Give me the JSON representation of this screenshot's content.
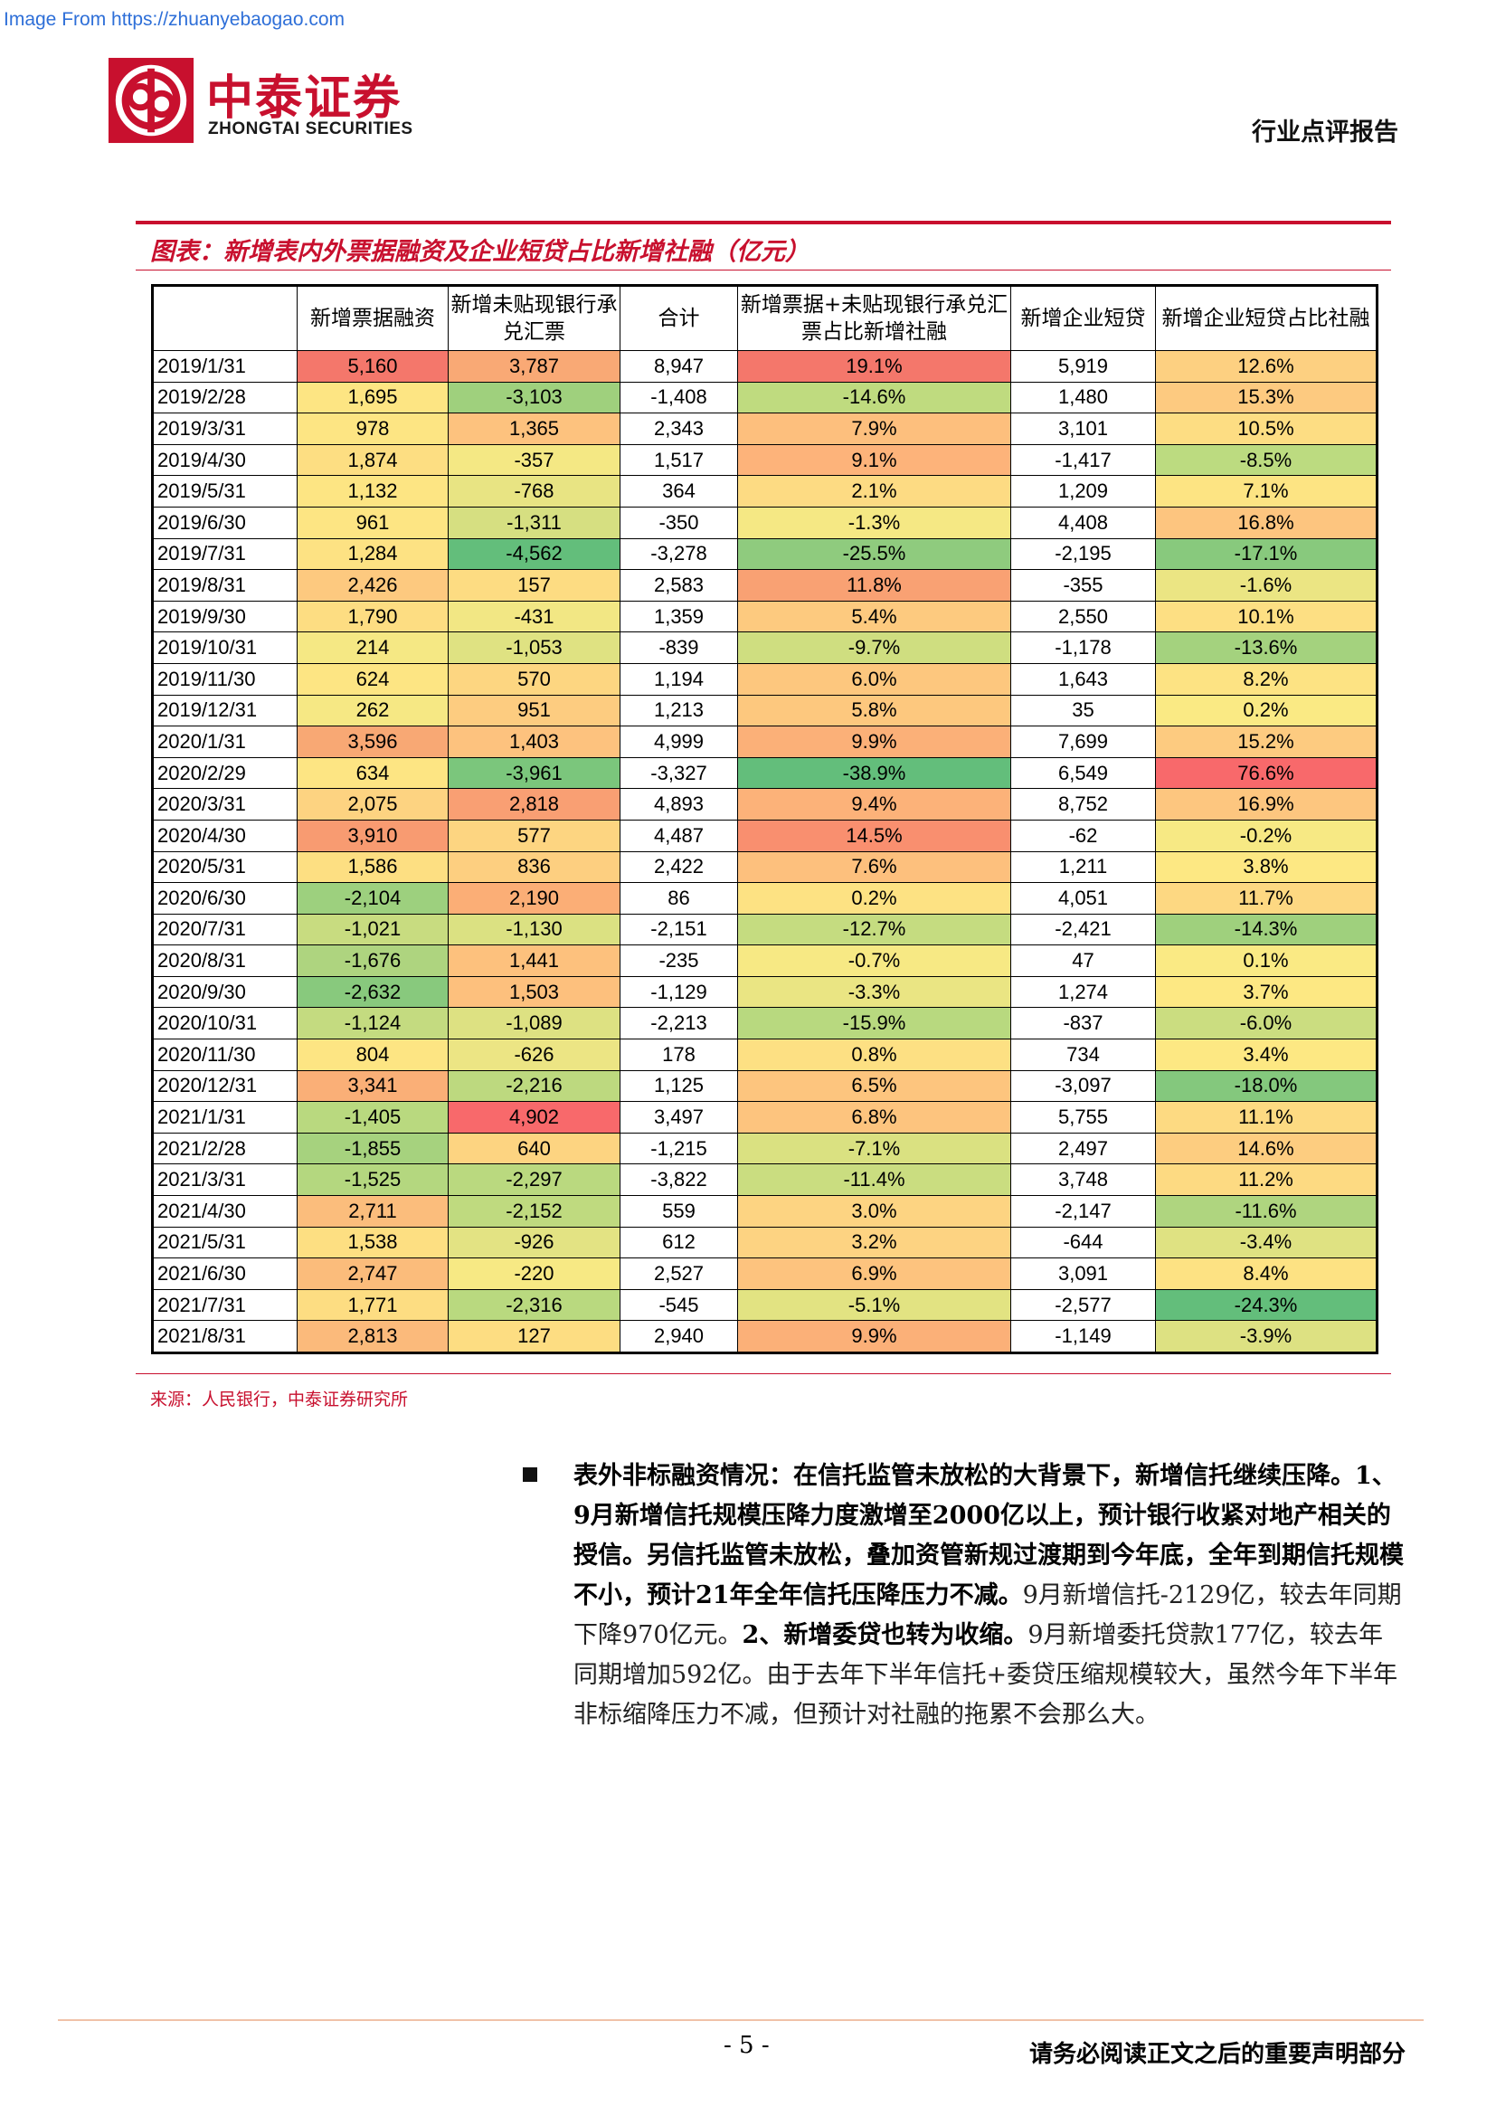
{
  "watermark": "Image From https://zhuanyebaogao.com",
  "header": {
    "logo_cn": "中泰证券",
    "logo_en": "ZHONGTAI SECURITIES",
    "report_type": "行业点评报告"
  },
  "figure": {
    "title": "图表：新增表内外票据融资及企业短贷占比新增社融（亿元）",
    "source": "来源：人民银行，中泰证券研究所"
  },
  "table": {
    "columns": [
      "",
      "新增票据融资",
      "新增未贴现银行承兑汇票",
      "合计",
      "新增票据+未贴现银行承兑汇票占比新增社融",
      "新增企业短贷",
      "新增企业短贷占比社融"
    ],
    "rows": [
      {
        "date": "2019/1/31",
        "c1": "5,160",
        "c2": "3,787",
        "c3": "8,947",
        "c4": "19.1%",
        "c5": "5,919",
        "c6": "12.6%",
        "k1": "#f4776b",
        "k2": "#f9a975",
        "k4": "#f4776b",
        "k6": "#fdd081"
      },
      {
        "date": "2019/2/28",
        "c1": "1,695",
        "c2": "-3,103",
        "c3": "-1,408",
        "c4": "-14.6%",
        "c5": "1,480",
        "c6": "15.3%",
        "k1": "#fde583",
        "k2": "#9fd07d",
        "k4": "#bfdb7f",
        "k6": "#fdca80"
      },
      {
        "date": "2019/3/31",
        "c1": "978",
        "c2": "1,365",
        "c3": "2,343",
        "c4": "7.9%",
        "c5": "3,101",
        "c6": "10.5%",
        "k1": "#fde583",
        "k2": "#fdc27e",
        "k4": "#fdbf7d",
        "k6": "#fddd83"
      },
      {
        "date": "2019/4/30",
        "c1": "1,874",
        "c2": "-357",
        "c3": "1,517",
        "c4": "9.1%",
        "c5": "-1,417",
        "c6": "-8.5%",
        "k1": "#fdde82",
        "k2": "#f4e884",
        "k4": "#fdb37a",
        "k6": "#bcdb80"
      },
      {
        "date": "2019/5/31",
        "c1": "1,132",
        "c2": "-768",
        "c3": "364",
        "c4": "2.1%",
        "c5": "1,209",
        "c6": "7.1%",
        "k1": "#fde583",
        "k2": "#e8e483",
        "k4": "#fddb83",
        "k6": "#fde483"
      },
      {
        "date": "2019/6/30",
        "c1": "961",
        "c2": "-1,311",
        "c3": "-350",
        "c4": "-1.3%",
        "c5": "4,408",
        "c6": "16.8%",
        "k1": "#fde583",
        "k2": "#d6df81",
        "k4": "#f5e884",
        "k6": "#fdc57f"
      },
      {
        "date": "2019/7/31",
        "c1": "1,284",
        "c2": "-4,562",
        "c3": "-3,278",
        "c4": "-25.5%",
        "c5": "-2,195",
        "c6": "-17.1%",
        "k1": "#fde283",
        "k2": "#63be7b",
        "k4": "#8fcb7e",
        "k6": "#88c97d"
      },
      {
        "date": "2019/8/31",
        "c1": "2,426",
        "c2": "157",
        "c3": "2,583",
        "c4": "11.8%",
        "c5": "-355",
        "c6": "-1.6%",
        "k1": "#fdc97f",
        "k2": "#fddc82",
        "k4": "#f9a173",
        "k6": "#ebe583"
      },
      {
        "date": "2019/9/30",
        "c1": "1,790",
        "c2": "-431",
        "c3": "1,359",
        "c4": "5.4%",
        "c5": "2,550",
        "c6": "10.1%",
        "k1": "#fddd82",
        "k2": "#f2e784",
        "k4": "#fdca7f",
        "k6": "#fddf83"
      },
      {
        "date": "2019/10/31",
        "c1": "214",
        "c2": "-1,053",
        "c3": "-839",
        "c4": "-9.7%",
        "c5": "-1,178",
        "c6": "-13.6%",
        "k1": "#f5e884",
        "k2": "#dfe282",
        "k4": "#cfde80",
        "k6": "#a4d27e"
      },
      {
        "date": "2019/11/30",
        "c1": "624",
        "c2": "570",
        "c3": "1,194",
        "c4": "6.0%",
        "c5": "1,643",
        "c6": "8.2%",
        "k1": "#fde583",
        "k2": "#fdd681",
        "k4": "#fdc77e",
        "k6": "#fde383"
      },
      {
        "date": "2019/12/31",
        "c1": "262",
        "c2": "951",
        "c3": "1,213",
        "c4": "5.8%",
        "c5": "35",
        "c6": "0.2%",
        "k1": "#f6e884",
        "k2": "#fdcc80",
        "k4": "#fdc87e",
        "k6": "#faea84"
      },
      {
        "date": "2020/1/31",
        "c1": "3,596",
        "c2": "1,403",
        "c3": "4,999",
        "c4": "9.9%",
        "c5": "7,699",
        "c6": "15.2%",
        "k1": "#f8a874",
        "k2": "#fdc27e",
        "k4": "#fbb078",
        "k6": "#fdcb80"
      },
      {
        "date": "2020/2/29",
        "c1": "634",
        "c2": "-3,961",
        "c3": "-3,327",
        "c4": "-38.9%",
        "c5": "6,549",
        "c6": "76.6%",
        "k1": "#fde583",
        "k2": "#7bc67c",
        "k4": "#63be7b",
        "k6": "#f8696b"
      },
      {
        "date": "2020/3/31",
        "c1": "2,075",
        "c2": "2,818",
        "c3": "4,893",
        "c4": "9.4%",
        "c5": "8,752",
        "c6": "16.9%",
        "k1": "#fdd381",
        "k2": "#f99f73",
        "k4": "#fcb279",
        "k6": "#fdc67f"
      },
      {
        "date": "2020/4/30",
        "c1": "3,910",
        "c2": "577",
        "c3": "4,487",
        "c4": "14.5%",
        "c5": "-62",
        "c6": "-0.2%",
        "k1": "#f89b71",
        "k2": "#fdd581",
        "k4": "#f98f6f",
        "k6": "#f7e984"
      },
      {
        "date": "2020/5/31",
        "c1": "1,586",
        "c2": "836",
        "c3": "2,422",
        "c4": "7.6%",
        "c5": "1,211",
        "c6": "3.8%",
        "k1": "#fddf82",
        "k2": "#fdcf80",
        "k4": "#fdc07d",
        "k6": "#fde883"
      },
      {
        "date": "2020/6/30",
        "c1": "-2,104",
        "c2": "2,190",
        "c3": "86",
        "c4": "0.2%",
        "c5": "4,051",
        "c6": "11.7%",
        "k1": "#9dd07e",
        "k2": "#fbae76",
        "k4": "#fde283",
        "k6": "#fdd882"
      },
      {
        "date": "2020/7/31",
        "c1": "-1,021",
        "c2": "-1,130",
        "c3": "-2,151",
        "c4": "-12.7%",
        "c5": "-2,421",
        "c6": "-14.3%",
        "k1": "#c8dc80",
        "k2": "#dbe182",
        "k4": "#c5dc80",
        "k6": "#9fd07d"
      },
      {
        "date": "2020/8/31",
        "c1": "-1,676",
        "c2": "1,441",
        "c3": "-235",
        "c4": "-0.7%",
        "c5": "47",
        "c6": "0.1%",
        "k1": "#aed47f",
        "k2": "#fdc17d",
        "k4": "#f7e984",
        "k6": "#faea84"
      },
      {
        "date": "2020/9/30",
        "c1": "-2,632",
        "c2": "1,503",
        "c3": "-1,129",
        "c4": "-3.3%",
        "c5": "1,274",
        "c6": "3.7%",
        "k1": "#88c97d",
        "k2": "#fdc07d",
        "k4": "#eae583",
        "k6": "#fde883"
      },
      {
        "date": "2020/10/31",
        "c1": "-1,124",
        "c2": "-1,089",
        "c3": "-2,213",
        "c4": "-15.9%",
        "c5": "-837",
        "c6": "-6.0%",
        "k1": "#c4db80",
        "k2": "#dde182",
        "k4": "#b8d97f",
        "k6": "#cbdd80"
      },
      {
        "date": "2020/11/30",
        "c1": "804",
        "c2": "-626",
        "c3": "178",
        "c4": "0.8%",
        "c5": "734",
        "c6": "3.4%",
        "k1": "#fde583",
        "k2": "#ece584",
        "k4": "#fde083",
        "k6": "#fde883"
      },
      {
        "date": "2020/12/31",
        "c1": "3,341",
        "c2": "-2,216",
        "c3": "1,125",
        "c4": "6.5%",
        "c5": "-3,097",
        "c6": "-18.0%",
        "k1": "#faaf77",
        "k2": "#bdd97f",
        "k4": "#fdc57e",
        "k6": "#84c87d"
      },
      {
        "date": "2021/1/31",
        "c1": "-1,405",
        "c2": "4,902",
        "c3": "3,497",
        "c4": "6.8%",
        "c5": "5,755",
        "c6": "11.1%",
        "k1": "#b9d97f",
        "k2": "#f8696b",
        "k4": "#fdc47e",
        "k6": "#fdda82"
      },
      {
        "date": "2021/2/28",
        "c1": "-1,855",
        "c2": "640",
        "c3": "-1,215",
        "c4": "-7.1%",
        "c5": "2,497",
        "c6": "14.6%",
        "k1": "#a6d27e",
        "k2": "#fdd481",
        "k4": "#dae181",
        "k6": "#fdcd80"
      },
      {
        "date": "2021/3/31",
        "c1": "-1,525",
        "c2": "-2,297",
        "c3": "-3,822",
        "c4": "-11.4%",
        "c5": "3,748",
        "c6": "11.2%",
        "k1": "#b4d77f",
        "k2": "#bad97f",
        "k4": "#cadd80",
        "k6": "#fdda82"
      },
      {
        "date": "2021/4/30",
        "c1": "2,711",
        "c2": "-2,152",
        "c3": "559",
        "c4": "3.0%",
        "c5": "-2,147",
        "c6": "-11.6%",
        "k1": "#fbbd7c",
        "k2": "#bfda7f",
        "k4": "#fdd482",
        "k6": "#afd57f"
      },
      {
        "date": "2021/5/31",
        "c1": "1,538",
        "c2": "-926",
        "c3": "612",
        "c4": "3.2%",
        "c5": "-644",
        "c6": "-3.4%",
        "k1": "#fddf82",
        "k2": "#e3e383",
        "k4": "#fdd382",
        "k6": "#dfe282"
      },
      {
        "date": "2021/6/30",
        "c1": "2,747",
        "c2": "-220",
        "c3": "2,527",
        "c4": "6.9%",
        "c5": "3,091",
        "c6": "8.4%",
        "k1": "#fbbc7b",
        "k2": "#f7e984",
        "k4": "#fdc37e",
        "k6": "#fde283"
      },
      {
        "date": "2021/7/31",
        "c1": "1,771",
        "c2": "-2,316",
        "c3": "-545",
        "c4": "-5.1%",
        "c5": "-2,577",
        "c6": "-24.3%",
        "k1": "#fddd82",
        "k2": "#b9d97f",
        "k4": "#e2e382",
        "k6": "#63be7b"
      },
      {
        "date": "2021/8/31",
        "c1": "2,813",
        "c2": "127",
        "c3": "2,940",
        "c4": "9.9%",
        "c5": "-1,149",
        "c6": "-3.9%",
        "k1": "#fbba7b",
        "k2": "#fddd82",
        "k4": "#fbb078",
        "k6": "#dde182"
      }
    ]
  },
  "paragraph": {
    "bold1": "表外非标融资情况：在信托监管未放松的大背景下，新增信托继续压降。1、9月新增信托规模压降力度激增至2000亿以上，预计银行收紧对地产相关的授信。另信托监管未放松，叠加资管新规过渡期到今年底，全年到期信托规模不小，预计21年全年信托压降压力不减。",
    "text1": "9月新增信托-2129亿，较去年同期下降970亿元。",
    "bold2": "2、新增委贷也转为收缩。",
    "text2": "9月新增委托贷款177亿，较去年同期增加592亿。由于去年下半年信托+委贷压缩规模较大，虽然今年下半年非标缩降压力不减，但预计对社融的拖累不会那么大。"
  },
  "footer": {
    "page": "- 5 -",
    "disclaimer": "请务必阅读正文之后的重要声明部分"
  }
}
